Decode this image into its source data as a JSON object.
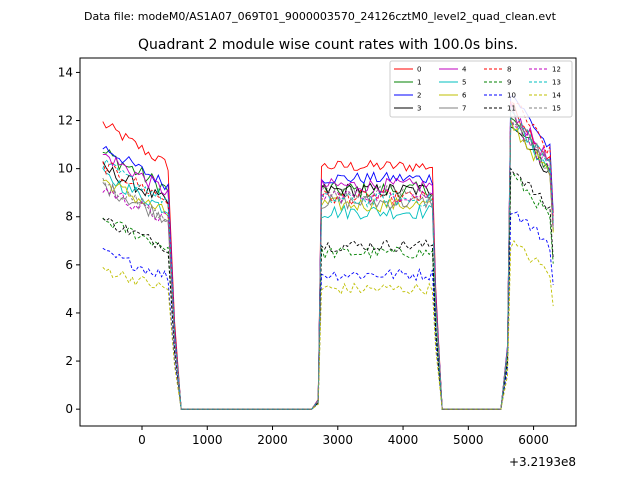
{
  "header": {
    "data_file": "Data file: modeM0/AS1A07_069T01_9000003570_24126cztM0_level2_quad_clean.evt"
  },
  "chart_data": {
    "type": "line",
    "title": "Quadrant 2 module wise count rates with 100.0s bins.",
    "xlabel": "",
    "ylabel": "",
    "x_offset_label": "+3.2193e8",
    "xlim": [
      -950,
      6650
    ],
    "ylim": [
      -0.7,
      14.6
    ],
    "x_ticks": [
      0,
      1000,
      2000,
      3000,
      4000,
      5000,
      6000
    ],
    "x_tick_labels": [
      "0",
      "1000",
      "2000",
      "3000",
      "4000",
      "5000",
      "6000"
    ],
    "y_ticks": [
      0,
      2,
      4,
      6,
      8,
      10,
      12,
      14
    ],
    "y_tick_labels": [
      "0",
      "2",
      "4",
      "6",
      "8",
      "10",
      "12",
      "14"
    ],
    "grid": false,
    "legend_position": "top-right",
    "legend_columns": 4,
    "segments": [
      {
        "start": -600,
        "end": 400
      },
      {
        "start": 2750,
        "end": 4450
      },
      {
        "start": 5650,
        "end": 6250
      }
    ],
    "gap_levels": [
      {
        "x": 500,
        "fraction": 0.33
      },
      {
        "x": 2700,
        "fraction": 0.04
      },
      {
        "x": 4500,
        "fraction": 0.5
      },
      {
        "x": 5600,
        "fraction": 0.22
      }
    ],
    "series": [
      {
        "name": "0",
        "color": "#ff0000",
        "dash": "solid",
        "seg_means": [
          11.0,
          10.1,
          11.5
        ],
        "noise": 0.25
      },
      {
        "name": "1",
        "color": "#008000",
        "dash": "solid",
        "seg_means": [
          9.9,
          9.1,
          11.0
        ],
        "noise": 0.35
      },
      {
        "name": "2",
        "color": "#0000ff",
        "dash": "solid",
        "seg_means": [
          10.1,
          9.6,
          12.0
        ],
        "noise": 0.25
      },
      {
        "name": "3",
        "color": "#000000",
        "dash": "solid",
        "seg_means": [
          9.3,
          9.1,
          10.9
        ],
        "noise": 0.3
      },
      {
        "name": "4",
        "color": "#bf00bf",
        "dash": "solid",
        "seg_means": [
          9.8,
          9.3,
          11.4
        ],
        "noise": 0.3
      },
      {
        "name": "5",
        "color": "#00bfbf",
        "dash": "solid",
        "seg_means": [
          9.0,
          8.2,
          11.0
        ],
        "noise": 0.3
      },
      {
        "name": "6",
        "color": "#bfbf00",
        "dash": "solid",
        "seg_means": [
          8.8,
          8.5,
          10.8
        ],
        "noise": 0.3
      },
      {
        "name": "7",
        "color": "#808080",
        "dash": "solid",
        "seg_means": [
          8.6,
          8.6,
          11.2
        ],
        "noise": 0.3
      },
      {
        "name": "8",
        "color": "#ff0000",
        "dash": "dashed",
        "seg_means": [
          9.4,
          8.8,
          11.8
        ],
        "noise": 0.3
      },
      {
        "name": "9",
        "color": "#008000",
        "dash": "dashed",
        "seg_means": [
          7.3,
          6.5,
          8.9
        ],
        "noise": 0.25
      },
      {
        "name": "10",
        "color": "#0000ff",
        "dash": "dashed",
        "seg_means": [
          6.0,
          5.6,
          7.6
        ],
        "noise": 0.25
      },
      {
        "name": "11",
        "color": "#000000",
        "dash": "dashed",
        "seg_means": [
          7.3,
          6.8,
          9.2
        ],
        "noise": 0.25
      },
      {
        "name": "12",
        "color": "#bf00bf",
        "dash": "dashed",
        "seg_means": [
          8.5,
          8.9,
          11.1
        ],
        "noise": 0.3
      },
      {
        "name": "13",
        "color": "#00bfbf",
        "dash": "dashed",
        "seg_means": [
          9.4,
          8.7,
          11.3
        ],
        "noise": 0.3
      },
      {
        "name": "14",
        "color": "#bfbf00",
        "dash": "dashed",
        "seg_means": [
          5.4,
          5.0,
          6.3
        ],
        "noise": 0.25
      },
      {
        "name": "15",
        "color": "#808080",
        "dash": "dashed",
        "seg_means": [
          8.7,
          9.0,
          11.0
        ],
        "noise": 0.3
      }
    ]
  }
}
